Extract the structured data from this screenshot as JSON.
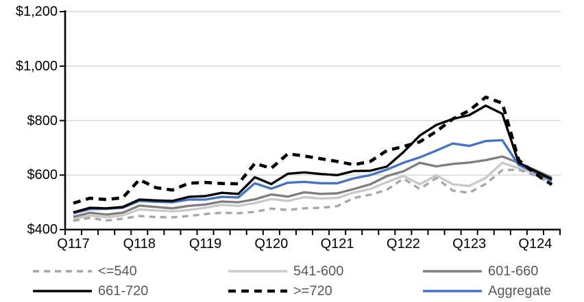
{
  "chart_data": {
    "type": "line",
    "title": "",
    "xlabel": "",
    "ylabel": "",
    "ylim": [
      400,
      1200
    ],
    "grid": true,
    "legend_position": "bottom",
    "y_ticks": [
      {
        "value": 400,
        "label": "$400"
      },
      {
        "value": 600,
        "label": "$600"
      },
      {
        "value": 800,
        "label": "$800"
      },
      {
        "value": 1000,
        "label": "$1,000"
      },
      {
        "value": 1200,
        "label": "$1,200"
      }
    ],
    "x_tick_labels": [
      "Q117",
      "Q118",
      "Q119",
      "Q120",
      "Q121",
      "Q122",
      "Q123",
      "Q124"
    ],
    "categories": [
      "Q117",
      "Q217",
      "Q317",
      "Q417",
      "Q118",
      "Q218",
      "Q318",
      "Q418",
      "Q119",
      "Q219",
      "Q319",
      "Q419",
      "Q120",
      "Q220",
      "Q320",
      "Q420",
      "Q121",
      "Q221",
      "Q321",
      "Q421",
      "Q122",
      "Q222",
      "Q322",
      "Q422",
      "Q123",
      "Q223",
      "Q323",
      "Q423",
      "Q124",
      "Q224"
    ],
    "series": [
      {
        "name": "<=540",
        "color": "#A6A6A6",
        "style": "dashed",
        "values": [
          432,
          443,
          433,
          440,
          450,
          446,
          445,
          450,
          457,
          462,
          460,
          465,
          477,
          472,
          478,
          480,
          486,
          516,
          528,
          546,
          587,
          549,
          589,
          543,
          535,
          568,
          618,
          620,
          598,
          568
        ]
      },
      {
        "name": "541-600",
        "color": "#C9C9C9",
        "style": "solid",
        "values": [
          438,
          452,
          445,
          452,
          474,
          470,
          467,
          472,
          480,
          491,
          487,
          497,
          512,
          505,
          519,
          514,
          516,
          536,
          549,
          574,
          597,
          566,
          599,
          566,
          560,
          590,
          645,
          625,
          605,
          575
        ]
      },
      {
        "name": "601-660",
        "color": "#7F7F7F",
        "style": "solid",
        "values": [
          447,
          462,
          455,
          462,
          488,
          483,
          478,
          487,
          492,
          503,
          500,
          511,
          529,
          521,
          537,
          531,
          533,
          549,
          566,
          596,
          614,
          645,
          632,
          641,
          646,
          655,
          668,
          645,
          618,
          591
        ]
      },
      {
        "name": "661-720",
        "color": "#000000",
        "style": "solid",
        "values": [
          463,
          480,
          478,
          483,
          510,
          507,
          505,
          520,
          523,
          535,
          531,
          592,
          567,
          605,
          610,
          604,
          600,
          615,
          616,
          631,
          684,
          745,
          784,
          806,
          820,
          855,
          825,
          645,
          615,
          585
        ]
      },
      {
        "name": ">=720",
        "color": "#000000",
        "style": "dashed-bold",
        "values": [
          497,
          515,
          510,
          517,
          583,
          554,
          545,
          570,
          573,
          569,
          568,
          643,
          625,
          678,
          670,
          660,
          650,
          638,
          650,
          690,
          705,
          722,
          760,
          806,
          837,
          886,
          864,
          655,
          605,
          565
        ]
      },
      {
        "name": "Aggregate",
        "color": "#4472C4",
        "style": "solid",
        "values": [
          460,
          475,
          476,
          480,
          505,
          502,
          500,
          510,
          510,
          520,
          518,
          570,
          550,
          572,
          575,
          570,
          570,
          588,
          600,
          620,
          645,
          665,
          690,
          716,
          707,
          725,
          728,
          637,
          610,
          580
        ]
      }
    ]
  },
  "colors": {
    "gridline": "#D9D9D9",
    "axis": "#000000",
    "axis_text": "#000000",
    "legend_text": "#595959",
    "background": "#FFFFFF"
  }
}
